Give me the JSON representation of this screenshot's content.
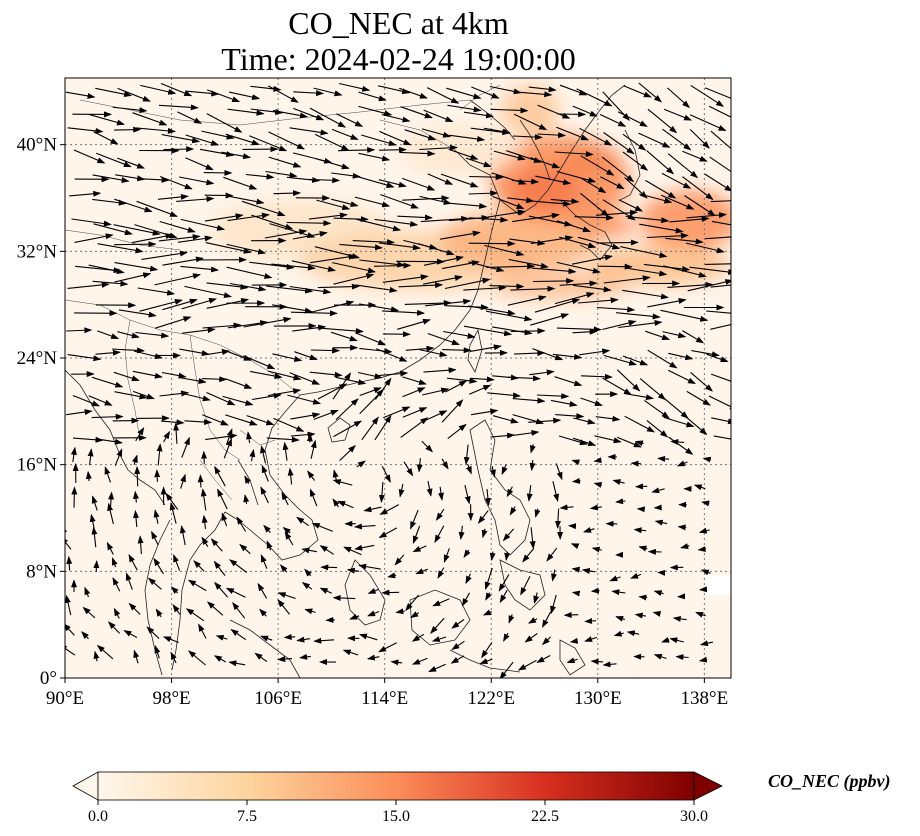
{
  "title": {
    "line1": "CO_NEC at 4km",
    "line2": "Time: 2024-02-24 19:00:00"
  },
  "map": {
    "lon_range": [
      90,
      140
    ],
    "lat_range": [
      0,
      45
    ],
    "x_ticks": [
      "90°E",
      "98°E",
      "106°E",
      "114°E",
      "122°E",
      "130°E",
      "138°E"
    ],
    "y_ticks": [
      "0°",
      "8°N",
      "16°N",
      "24°N",
      "32°N",
      "40°N"
    ],
    "gridlines": true,
    "background_color": "#fff5eb",
    "layers": [
      "CO_NEC concentration field",
      "coastlines",
      "country borders",
      "wind vectors"
    ]
  },
  "colorbar": {
    "title": "CO_NEC (ppbv)",
    "colormap": "OrRd",
    "min": 0,
    "max": 30,
    "tick_labels": [
      "0.0",
      "7.5",
      "15.0",
      "22.5",
      "30.0"
    ],
    "extend": "both",
    "colors": [
      "#fff7ec",
      "#fdd49e",
      "#fc8d59",
      "#d7301f",
      "#7f0000"
    ]
  }
}
